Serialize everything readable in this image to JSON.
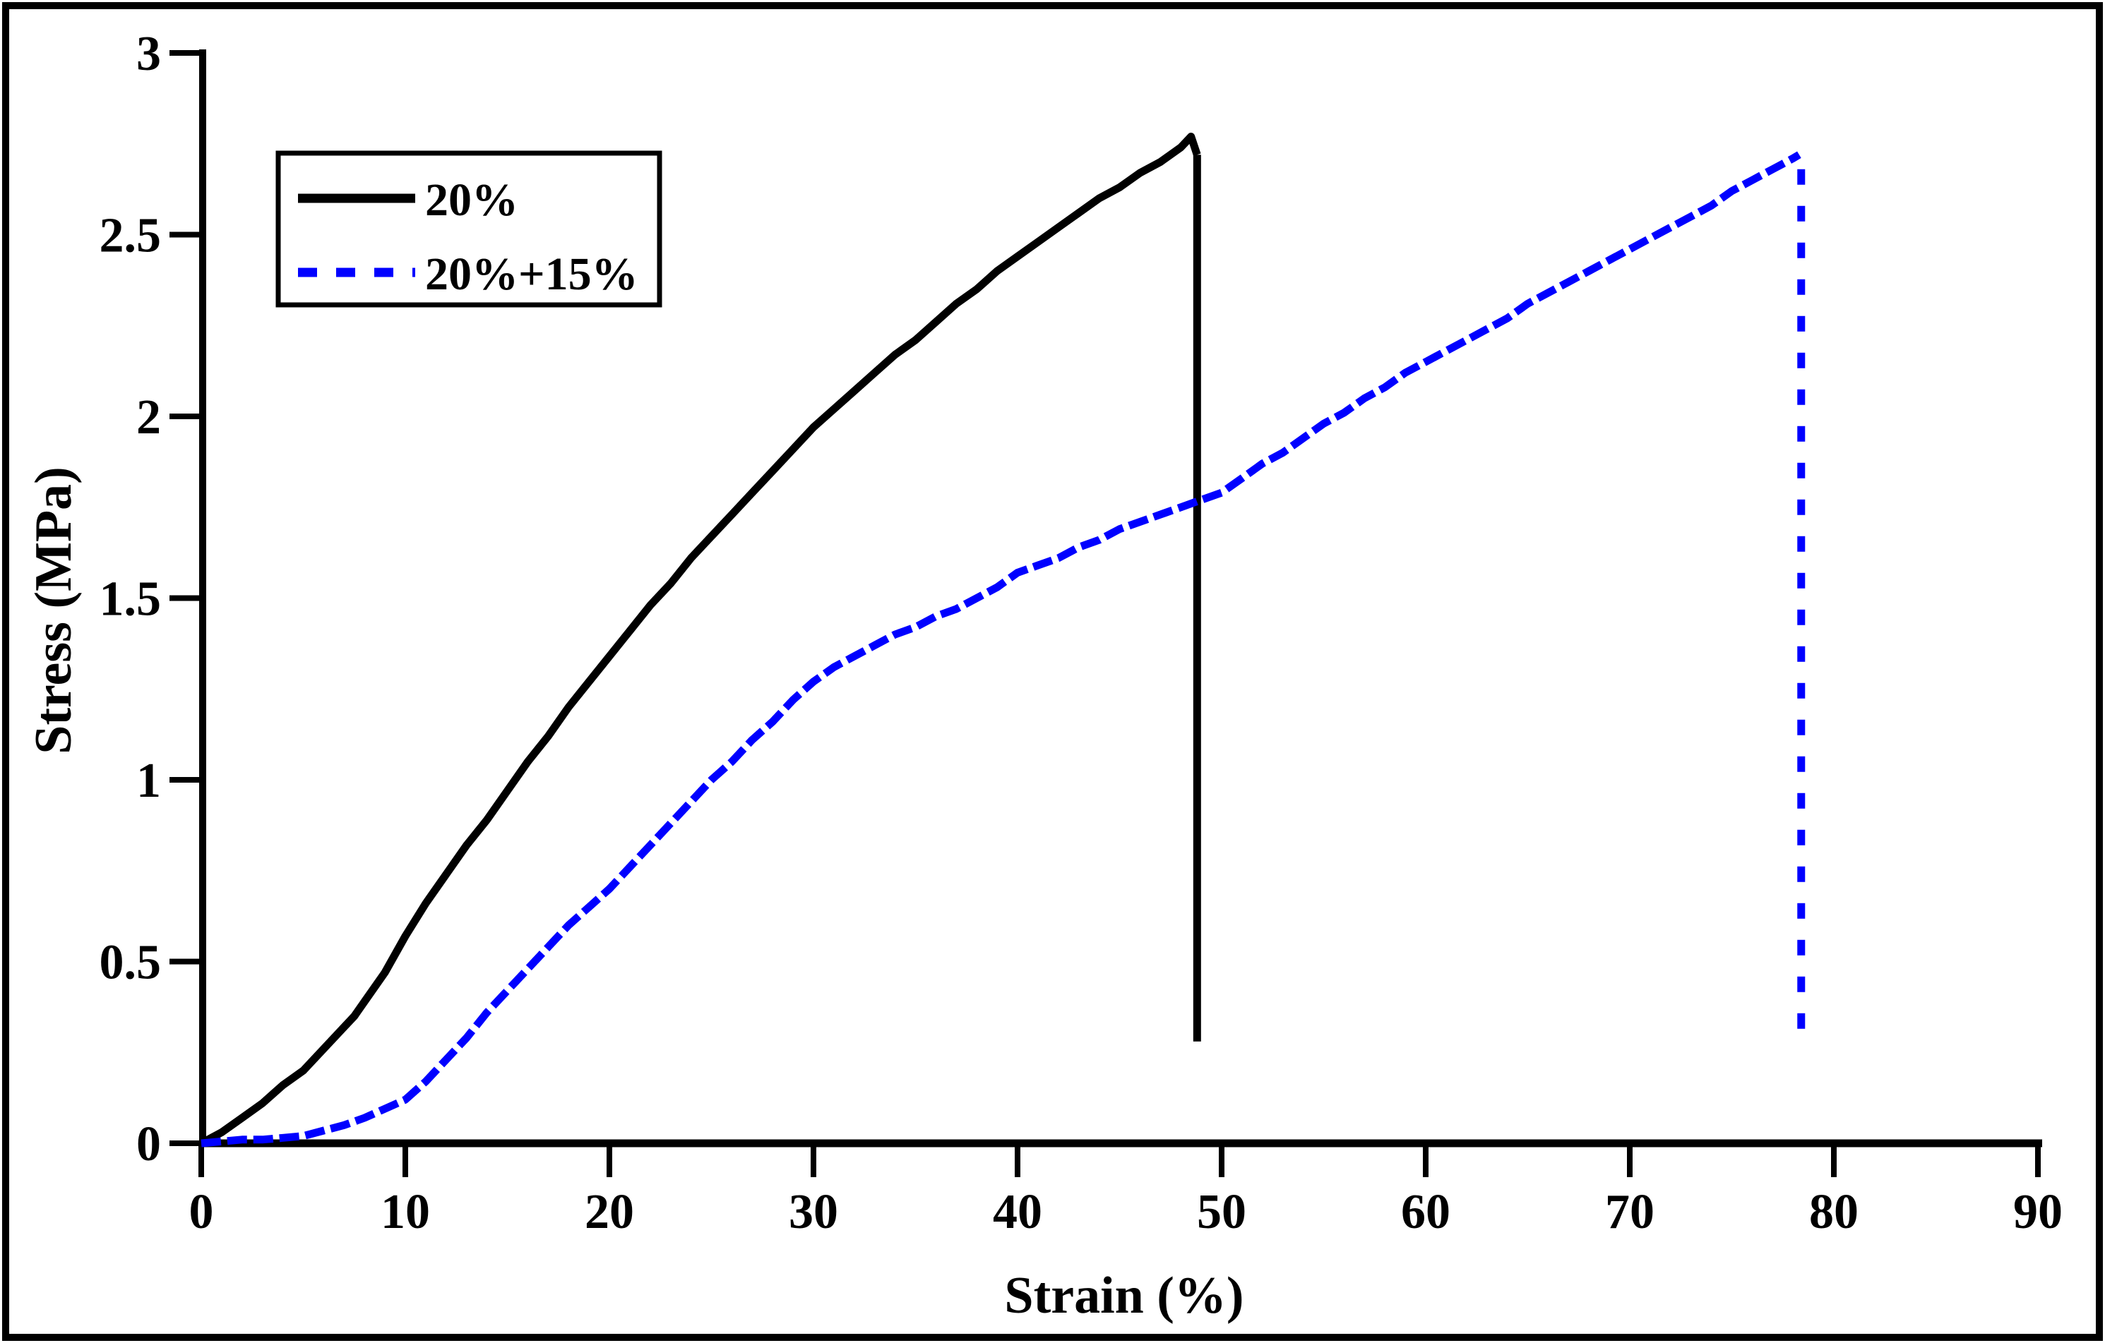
{
  "figure": {
    "background_color": "#ffffff",
    "border_color": "#000000"
  },
  "chart_data": {
    "type": "line",
    "title": "",
    "xlabel": "Strain (%)",
    "ylabel": "Stress (MPa)",
    "x_axis": {
      "min": 0,
      "max": 90,
      "ticks": [
        0,
        10,
        20,
        30,
        40,
        50,
        60,
        70,
        80,
        90
      ],
      "tick_labels": [
        "0",
        "10",
        "20",
        "30",
        "40",
        "50",
        "60",
        "70",
        "80",
        "90"
      ],
      "grid": false
    },
    "y_axis": {
      "min": 0,
      "max": 3,
      "ticks": [
        0,
        0.5,
        1,
        1.5,
        2,
        2.5,
        3
      ],
      "tick_labels": [
        "0",
        "0.5",
        "1",
        "1.5",
        "2",
        "2.5",
        "3"
      ],
      "grid": false
    },
    "legend": {
      "position": "upper-left",
      "entries": [
        "20%",
        "20%+15%"
      ]
    },
    "series": [
      {
        "name": "20%",
        "color": "#000000",
        "line_style": "solid",
        "peak": {
          "strain": 48.5,
          "stress": 2.77
        },
        "failure_drop": {
          "strain": 48.8,
          "stress_top": 2.72,
          "stress_bottom": 0.28
        },
        "points": [
          [
            0,
            0
          ],
          [
            1,
            0.03
          ],
          [
            2,
            0.07
          ],
          [
            3,
            0.11
          ],
          [
            4,
            0.16
          ],
          [
            5,
            0.2
          ],
          [
            6,
            0.26
          ],
          [
            7,
            0.32
          ],
          [
            7.5,
            0.35
          ],
          [
            8,
            0.39
          ],
          [
            9,
            0.47
          ],
          [
            10,
            0.57
          ],
          [
            11,
            0.66
          ],
          [
            12,
            0.74
          ],
          [
            13,
            0.82
          ],
          [
            14,
            0.89
          ],
          [
            15,
            0.97
          ],
          [
            16,
            1.05
          ],
          [
            17,
            1.12
          ],
          [
            18,
            1.2
          ],
          [
            19,
            1.27
          ],
          [
            20,
            1.34
          ],
          [
            21,
            1.41
          ],
          [
            22,
            1.48
          ],
          [
            23,
            1.54
          ],
          [
            24,
            1.61
          ],
          [
            25,
            1.67
          ],
          [
            26,
            1.73
          ],
          [
            27,
            1.79
          ],
          [
            28,
            1.85
          ],
          [
            29,
            1.91
          ],
          [
            30,
            1.97
          ],
          [
            31,
            2.02
          ],
          [
            32,
            2.07
          ],
          [
            33,
            2.12
          ],
          [
            34,
            2.17
          ],
          [
            35,
            2.21
          ],
          [
            36,
            2.26
          ],
          [
            37,
            2.31
          ],
          [
            38,
            2.35
          ],
          [
            39,
            2.4
          ],
          [
            40,
            2.44
          ],
          [
            41,
            2.48
          ],
          [
            42,
            2.52
          ],
          [
            43,
            2.56
          ],
          [
            44,
            2.6
          ],
          [
            45,
            2.63
          ],
          [
            46,
            2.67
          ],
          [
            47,
            2.7
          ],
          [
            48,
            2.74
          ],
          [
            48.5,
            2.77
          ],
          [
            48.8,
            2.72
          ]
        ]
      },
      {
        "name": "20%+15%",
        "color": "#0000ff",
        "line_style": "dashed",
        "peak": {
          "strain": 78.3,
          "stress": 2.72
        },
        "failure_drop": {
          "strain": 78.4,
          "stress_top": 2.68,
          "stress_bottom": 0.29
        },
        "points": [
          [
            0,
            0
          ],
          [
            1,
            0.005
          ],
          [
            2,
            0.01
          ],
          [
            3,
            0.01
          ],
          [
            4,
            0.015
          ],
          [
            5,
            0.02
          ],
          [
            6,
            0.035
          ],
          [
            7,
            0.05
          ],
          [
            8,
            0.07
          ],
          [
            9,
            0.095
          ],
          [
            10,
            0.12
          ],
          [
            11,
            0.17
          ],
          [
            12,
            0.23
          ],
          [
            13,
            0.29
          ],
          [
            14,
            0.36
          ],
          [
            15,
            0.42
          ],
          [
            16,
            0.48
          ],
          [
            17,
            0.54
          ],
          [
            18,
            0.6
          ],
          [
            19,
            0.65
          ],
          [
            20,
            0.7
          ],
          [
            21,
            0.76
          ],
          [
            22,
            0.82
          ],
          [
            23,
            0.88
          ],
          [
            24,
            0.94
          ],
          [
            25,
            1.0
          ],
          [
            26,
            1.05
          ],
          [
            27,
            1.11
          ],
          [
            28,
            1.16
          ],
          [
            29,
            1.22
          ],
          [
            30,
            1.27
          ],
          [
            31,
            1.31
          ],
          [
            32,
            1.34
          ],
          [
            33,
            1.37
          ],
          [
            34,
            1.4
          ],
          [
            35,
            1.42
          ],
          [
            36,
            1.45
          ],
          [
            37,
            1.47
          ],
          [
            38,
            1.5
          ],
          [
            39,
            1.53
          ],
          [
            40,
            1.57
          ],
          [
            41,
            1.59
          ],
          [
            42,
            1.61
          ],
          [
            43,
            1.64
          ],
          [
            44,
            1.66
          ],
          [
            45,
            1.69
          ],
          [
            46,
            1.71
          ],
          [
            47,
            1.73
          ],
          [
            48,
            1.75
          ],
          [
            49,
            1.77
          ],
          [
            50,
            1.79
          ],
          [
            51,
            1.83
          ],
          [
            52,
            1.87
          ],
          [
            53,
            1.9
          ],
          [
            54,
            1.94
          ],
          [
            55,
            1.98
          ],
          [
            56,
            2.01
          ],
          [
            57,
            2.05
          ],
          [
            58,
            2.08
          ],
          [
            59,
            2.12
          ],
          [
            60,
            2.15
          ],
          [
            61,
            2.18
          ],
          [
            62,
            2.21
          ],
          [
            63,
            2.24
          ],
          [
            64,
            2.27
          ],
          [
            65,
            2.31
          ],
          [
            66,
            2.34
          ],
          [
            67,
            2.37
          ],
          [
            68,
            2.4
          ],
          [
            69,
            2.43
          ],
          [
            70,
            2.46
          ],
          [
            71,
            2.49
          ],
          [
            72,
            2.52
          ],
          [
            73,
            2.55
          ],
          [
            74,
            2.58
          ],
          [
            75,
            2.62
          ],
          [
            76,
            2.65
          ],
          [
            77,
            2.68
          ],
          [
            78,
            2.71
          ],
          [
            78.3,
            2.72
          ]
        ]
      }
    ]
  }
}
